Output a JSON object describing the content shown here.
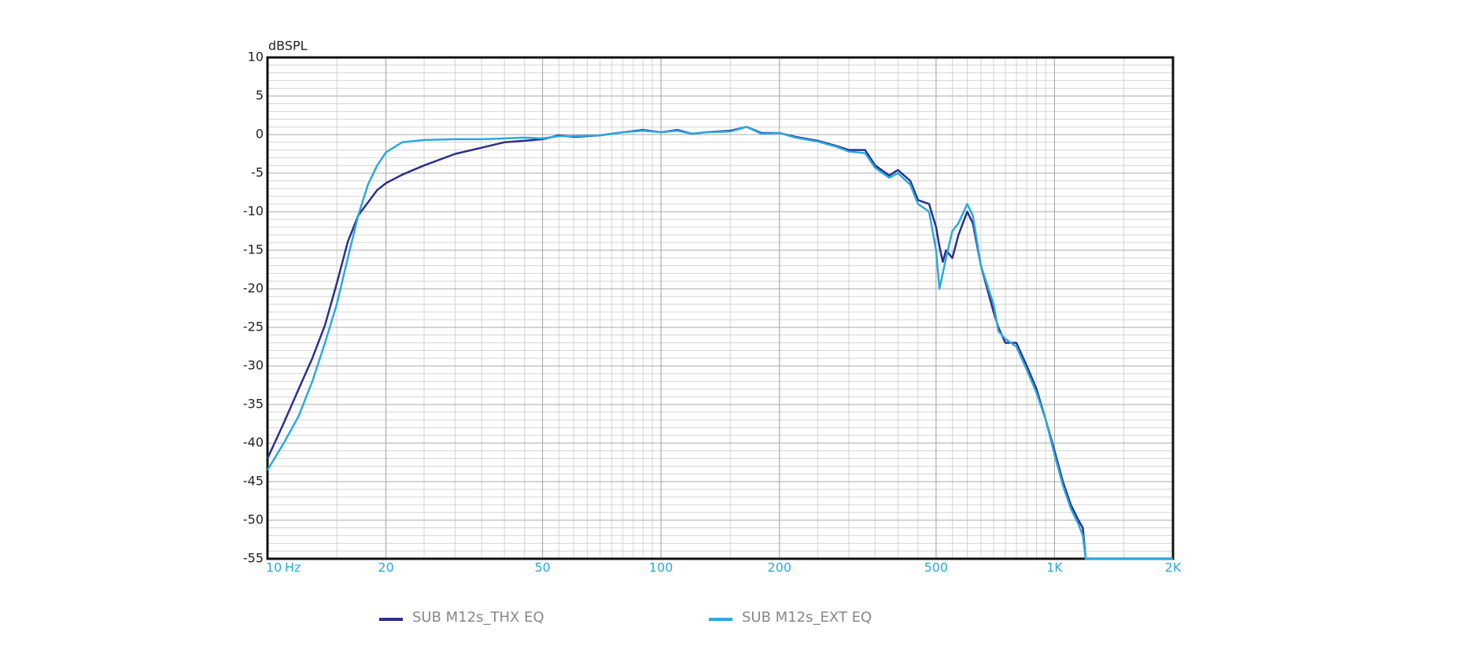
{
  "chart_data": {
    "type": "line",
    "y_label": "dBSPL",
    "x_label": "Hz",
    "x_scale": "log",
    "grid": true,
    "minor_grid": true,
    "legend": "bottom",
    "xlim": [
      10,
      2000
    ],
    "ylim": [
      -55,
      10
    ],
    "xticks": [
      10,
      20,
      50,
      100,
      200,
      500,
      {
        "value": 1000,
        "label": "1K"
      },
      {
        "value": 2000,
        "label": "2K"
      }
    ],
    "yticks": [
      -55,
      -50,
      -45,
      -40,
      -35,
      -30,
      -25,
      -20,
      -15,
      -10,
      -5,
      0,
      5,
      10
    ],
    "x": [
      10,
      11,
      12,
      13,
      14,
      15,
      16,
      17,
      18,
      19,
      20,
      22,
      25,
      30,
      35,
      40,
      45,
      50,
      55,
      60,
      70,
      80,
      90,
      100,
      110,
      120,
      130,
      150,
      165,
      180,
      200,
      220,
      250,
      280,
      300,
      330,
      350,
      380,
      400,
      430,
      450,
      480,
      500,
      510,
      520,
      530,
      550,
      570,
      600,
      620,
      650,
      700,
      720,
      750,
      800,
      850,
      900,
      950,
      1000,
      1050,
      1100,
      1150,
      1180,
      1200,
      2000
    ],
    "series": [
      {
        "name": "SUB M12s_THX EQ",
        "color": "#2b2f8f",
        "values": [
          -42,
          -37.4,
          -33,
          -29,
          -24.7,
          -19.3,
          -13.9,
          -10.5,
          -8.8,
          -7.2,
          -6.3,
          -5.2,
          -4,
          -2.5,
          -1.7,
          -1,
          -0.8,
          -0.6,
          -0.1,
          -0.3,
          -0.1,
          0.3,
          0.6,
          0.3,
          0.6,
          0.1,
          0.3,
          0.5,
          1.0,
          0.2,
          0.2,
          -0.3,
          -0.8,
          -1.5,
          -2,
          -2,
          -4,
          -5.3,
          -4.6,
          -6,
          -8.5,
          -9,
          -12,
          -14.5,
          -16.5,
          -15,
          -16,
          -13,
          -10,
          -11.5,
          -17,
          -23,
          -25,
          -27,
          -27,
          -30,
          -33,
          -37,
          -41,
          -45,
          -48,
          -50,
          -51,
          -55,
          -55
        ]
      },
      {
        "name": "SUB M12s_EXT EQ",
        "color": "#29a9e0",
        "values": [
          -43.5,
          -40,
          -36.5,
          -32,
          -27,
          -22,
          -16,
          -10.5,
          -6.5,
          -4,
          -2.3,
          -1,
          -0.7,
          -0.6,
          -0.6,
          -0.5,
          -0.4,
          -0.5,
          -0.2,
          -0.2,
          -0.1,
          0.3,
          0.5,
          0.3,
          0.5,
          0.1,
          0.3,
          0.4,
          1.0,
          0.1,
          0.2,
          -0.4,
          -0.9,
          -1.6,
          -2.2,
          -2.4,
          -4.3,
          -5.6,
          -5,
          -6.5,
          -9,
          -10,
          -15,
          -20,
          -18,
          -16,
          -12.5,
          -11.5,
          -9,
          -10.5,
          -17,
          -22,
          -25.5,
          -26.5,
          -27.5,
          -30.5,
          -33.5,
          -37,
          -41.5,
          -45.5,
          -48.5,
          -50.5,
          -52,
          -55,
          -55
        ]
      }
    ]
  }
}
